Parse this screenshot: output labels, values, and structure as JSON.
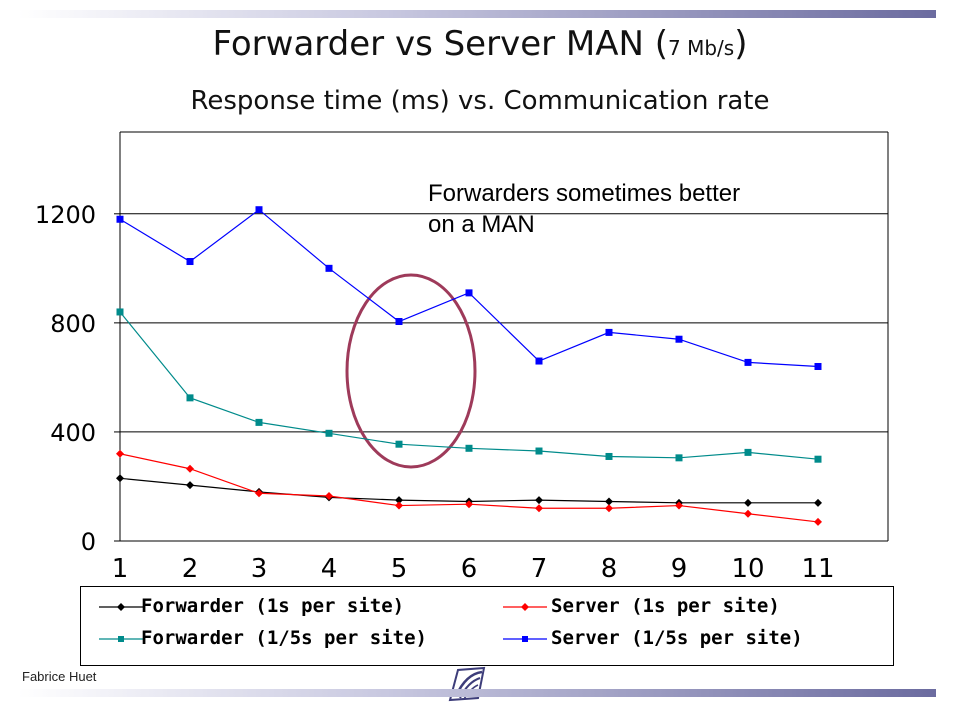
{
  "slide": {
    "title_main": "Forwarder vs Server  MAN (",
    "title_rate": "7 Mb/s",
    "title_close": ")",
    "subtitle": "Response time (ms) vs. Communication rate",
    "annotation_line1": "Forwarders sometimes better",
    "annotation_line2": "on a MAN",
    "footer": "Fabrice Huet"
  },
  "chart_data": {
    "type": "line",
    "title": "Forwarder vs Server  MAN (7 Mb/s)",
    "subtitle": "Response time (ms) vs. Communication rate",
    "categories": [
      "1",
      "2",
      "3",
      "4",
      "5",
      "6",
      "7",
      "8",
      "9",
      "10",
      "11"
    ],
    "y_ticks": [
      "0",
      "400",
      "800",
      "1200"
    ],
    "y_tick_values": [
      0,
      400,
      800,
      1200
    ],
    "ylim": [
      0,
      1500
    ],
    "grid": "horizontal",
    "legend_position": "bottom",
    "series": [
      {
        "name": "Forwarder (1s per site)",
        "color": "#000000",
        "marker": "diamond",
        "values": [
          230,
          205,
          180,
          160,
          150,
          145,
          150,
          145,
          140,
          140,
          140
        ]
      },
      {
        "name": "Server (1s per site)",
        "color": "#ff0000",
        "marker": "diamond",
        "values": [
          320,
          265,
          175,
          165,
          130,
          135,
          120,
          120,
          130,
          100,
          70
        ]
      },
      {
        "name": "Forwarder (1/5s per site)",
        "color": "#008b8b",
        "marker": "square",
        "values": [
          840,
          525,
          435,
          395,
          355,
          340,
          330,
          310,
          305,
          325,
          300
        ]
      },
      {
        "name": "Server (1/5s per site)",
        "color": "#0000ff",
        "marker": "square",
        "values": [
          1180,
          1025,
          1215,
          1000,
          805,
          910,
          660,
          765,
          740,
          655,
          640
        ]
      }
    ],
    "highlight": {
      "shape": "ellipse",
      "around_category": "5",
      "color": "#9e3a5a"
    }
  }
}
